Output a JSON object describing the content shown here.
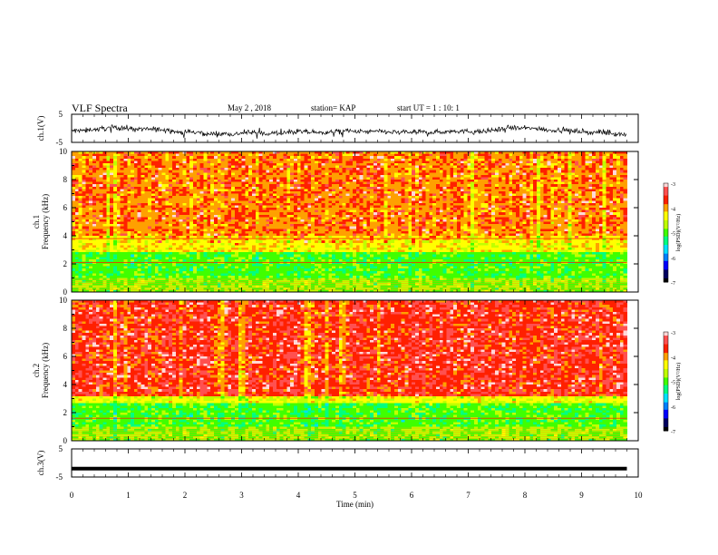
{
  "header": {
    "title": "VLF Spectra",
    "date": "May 2 , 2018",
    "station": "station= KAP",
    "start": "start  UT =  1 : 10: 1"
  },
  "chart_data": [
    {
      "type": "line",
      "name": "ch1-waveform",
      "ylabel": "ch.1(V)",
      "ylim": [
        -5,
        5
      ],
      "yticks": [
        "5",
        "-5"
      ],
      "x_range_min": [
        0,
        9.8
      ],
      "note_values": "noisy broadband signal roughly between -4 and 3 V",
      "y_mean": -1
    },
    {
      "type": "heatmap",
      "name": "ch1-spectrogram",
      "ylabel": "ch.1\nFrequency (kHz)",
      "ylim": [
        0,
        10
      ],
      "yticks": [
        "0",
        "2",
        "4",
        "6",
        "8",
        "10"
      ],
      "x_range_min": [
        0,
        9.8
      ],
      "colorbar": {
        "label": "log(PSD)(V²/Hz)",
        "range": [
          -7,
          -3
        ],
        "ticks": [
          "-3",
          "-4",
          "-5",
          "-6",
          "-7"
        ]
      },
      "bands": [
        {
          "from_khz": 0,
          "to_khz": 1.0,
          "log_psd": -4.8
        },
        {
          "from_khz": 1.0,
          "to_khz": 2.8,
          "log_psd": -5.0
        },
        {
          "from_khz": 2.8,
          "to_khz": 4.0,
          "log_psd": -4.3
        },
        {
          "from_khz": 4.0,
          "to_khz": 10.0,
          "log_psd": -3.9
        }
      ],
      "lines_khz": [
        2.1,
        3.8
      ]
    },
    {
      "type": "heatmap",
      "name": "ch2-spectrogram",
      "ylabel": "ch.2\nFrequency (kHz)",
      "ylim": [
        0,
        10
      ],
      "yticks": [
        "0",
        "2",
        "4",
        "6",
        "8",
        "10"
      ],
      "x_range_min": [
        0,
        9.8
      ],
      "colorbar": {
        "label": "log(PSD)(V²/Hz)",
        "range": [
          -7,
          -3
        ],
        "ticks": [
          "-3",
          "-4",
          "-5",
          "-6",
          "-7"
        ]
      },
      "bands": [
        {
          "from_khz": 0,
          "to_khz": 1.0,
          "log_psd": -4.8
        },
        {
          "from_khz": 1.0,
          "to_khz": 2.6,
          "log_psd": -5.0
        },
        {
          "from_khz": 2.6,
          "to_khz": 3.2,
          "log_psd": -4.4
        },
        {
          "from_khz": 3.2,
          "to_khz": 10.0,
          "log_psd": -3.6
        }
      ],
      "lines_khz": [
        1.6
      ]
    },
    {
      "type": "line",
      "name": "ch3-waveform",
      "ylabel": "ch.3(V)",
      "ylim": [
        -5,
        5
      ],
      "yticks": [
        "5",
        "-5"
      ],
      "x_range_min": [
        0,
        9.8
      ],
      "y_mean": -2
    }
  ],
  "xaxis": {
    "label": "Time (min)",
    "range": [
      0,
      10
    ],
    "ticks": [
      "0",
      "1",
      "2",
      "3",
      "4",
      "5",
      "6",
      "7",
      "8",
      "9",
      "10"
    ]
  },
  "colors": {
    "background": "#ffffff",
    "axis": "#000000"
  },
  "colormap": [
    "#000000",
    "#000060",
    "#0000ff",
    "#0080ff",
    "#00e0ff",
    "#00ff80",
    "#40ff00",
    "#c0ff00",
    "#ffff00",
    "#ffa000",
    "#ff2000",
    "#ff5050",
    "#ffd8d8"
  ]
}
